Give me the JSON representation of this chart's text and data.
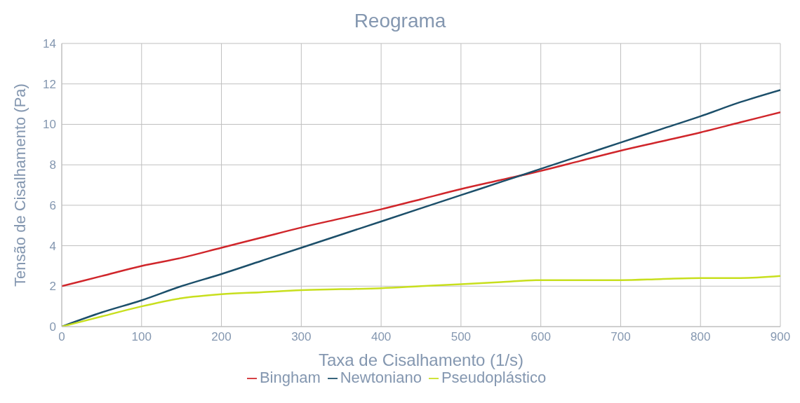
{
  "chart_data": {
    "type": "line",
    "title": "Reograma",
    "xlabel": "Taxa de Cisalhamento (1/s)",
    "ylabel": "Tensão de Cisalhamento (Pa)",
    "x": [
      0,
      50,
      100,
      150,
      200,
      250,
      300,
      350,
      400,
      450,
      500,
      550,
      600,
      650,
      700,
      750,
      800,
      850,
      900
    ],
    "series": [
      {
        "name": "Bingham",
        "color": "#d0262b",
        "values": [
          2.0,
          2.5,
          3.0,
          3.4,
          3.9,
          4.4,
          4.9,
          5.35,
          5.8,
          6.3,
          6.8,
          7.25,
          7.7,
          8.2,
          8.7,
          9.15,
          9.6,
          10.1,
          10.6
        ]
      },
      {
        "name": "Newtoniano",
        "color": "#1c4f6a",
        "values": [
          0,
          0.7,
          1.3,
          2.0,
          2.6,
          3.25,
          3.9,
          4.55,
          5.2,
          5.85,
          6.5,
          7.15,
          7.8,
          8.45,
          9.1,
          9.75,
          10.4,
          11.1,
          11.7
        ]
      },
      {
        "name": "Pseudoplástico",
        "color": "#c8df1e",
        "values": [
          0,
          0.5,
          1.0,
          1.4,
          1.6,
          1.7,
          1.8,
          1.85,
          1.9,
          2.0,
          2.1,
          2.2,
          2.3,
          2.3,
          2.3,
          2.35,
          2.4,
          2.4,
          2.5
        ]
      }
    ],
    "xlim": [
      0,
      900
    ],
    "xticks": [
      0,
      100,
      200,
      300,
      400,
      500,
      600,
      700,
      800,
      900
    ],
    "ylim": [
      0,
      14
    ],
    "yticks": [
      0,
      2,
      4,
      6,
      8,
      10,
      12,
      14
    ],
    "grid": true,
    "legend": "bottom",
    "marker": "none",
    "line_style": "solid"
  }
}
